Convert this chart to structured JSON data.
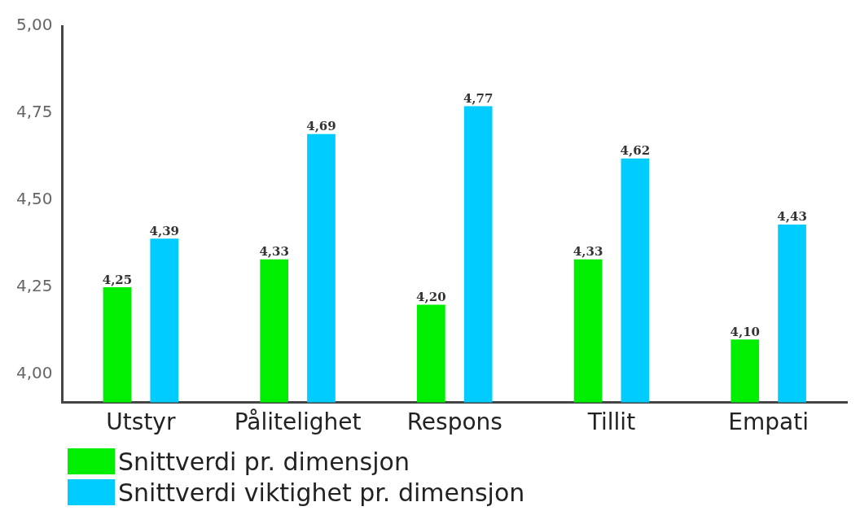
{
  "chart_data": {
    "type": "bar",
    "categories": [
      "Utstyr",
      "Pålitelighet",
      "Respons",
      "Tillit",
      "Empati"
    ],
    "series": [
      {
        "name": "Snittverdi pr. dimensjon",
        "color": "#00ee00",
        "values": [
          4.25,
          4.33,
          4.2,
          4.33,
          4.1
        ],
        "value_labels": [
          "4,25",
          "4,33",
          "4,20",
          "4,33",
          "4,10"
        ]
      },
      {
        "name": "Snittverdi viktighet pr. dimensjon",
        "color": "#00ccff",
        "values": [
          4.39,
          4.69,
          4.77,
          4.62,
          4.43
        ],
        "value_labels": [
          "4,39",
          "4,69",
          "4,77",
          "4,62",
          "4,43"
        ]
      }
    ],
    "ylim": [
      3.92,
      5.0
    ],
    "yticks": [
      {
        "value": 4,
        "label": "4,00"
      },
      {
        "value": 4.25,
        "label": "4,25"
      },
      {
        "value": 4.5,
        "label": "4,50"
      },
      {
        "value": 4.75,
        "label": "4,75"
      },
      {
        "value": 5,
        "label": "5,00"
      }
    ],
    "grid": false,
    "legend": "bottom left"
  }
}
